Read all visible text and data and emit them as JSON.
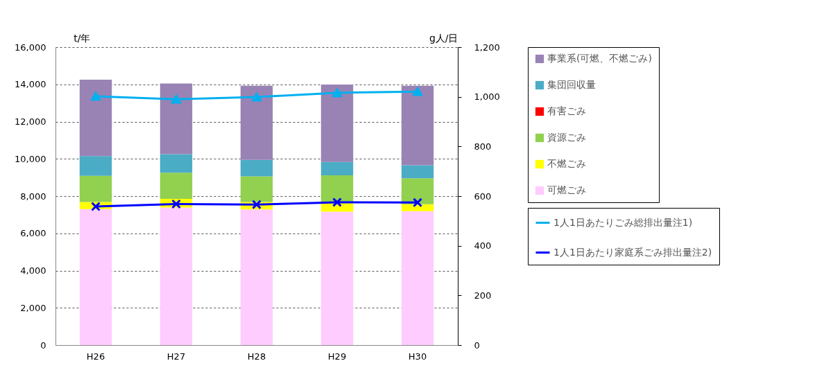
{
  "chart_data": {
    "type": "bar",
    "stacked": true,
    "categories": [
      "H26",
      "H27",
      "H28",
      "H29",
      "H30"
    ],
    "ylabel": "t/年",
    "y2label": "g人/日",
    "ylim": [
      0,
      16000
    ],
    "yticks": [
      {
        "value": 0,
        "label": "0"
      },
      {
        "value": 2000,
        "label": "2,000"
      },
      {
        "value": 4000,
        "label": "4,000"
      },
      {
        "value": 6000,
        "label": "6,000"
      },
      {
        "value": 8000,
        "label": "8,000"
      },
      {
        "value": 10000,
        "label": "10,000"
      },
      {
        "value": 12000,
        "label": "12,000"
      },
      {
        "value": 14000,
        "label": "14,000"
      },
      {
        "value": 16000,
        "label": "16,000"
      }
    ],
    "y2lim": [
      0,
      1200
    ],
    "y2ticks": [
      {
        "value": 0,
        "label": "0"
      },
      {
        "value": 200,
        "label": "200"
      },
      {
        "value": 400,
        "label": "400"
      },
      {
        "value": 600,
        "label": "600"
      },
      {
        "value": 800,
        "label": "800"
      },
      {
        "value": 1000,
        "label": "1,000"
      },
      {
        "value": 1200,
        "label": "1,200"
      }
    ],
    "grid": "y",
    "legend": "right",
    "series": [
      {
        "name": "可燃ごみ",
        "color": "#ffccff",
        "values": [
          7300,
          7390,
          7280,
          7160,
          7190
        ]
      },
      {
        "name": "不燃ごみ",
        "color": "#ffff00",
        "values": [
          380,
          460,
          400,
          520,
          370
        ]
      },
      {
        "name": "資源ごみ",
        "color": "#92d050",
        "values": [
          1410,
          1410,
          1380,
          1440,
          1400
        ]
      },
      {
        "name": "有害ごみ",
        "color": "#ff0000",
        "values": [
          null,
          null,
          null,
          null,
          null
        ]
      },
      {
        "name": "集団回収量",
        "color": "#4bacc6",
        "values": [
          1060,
          990,
          880,
          710,
          700
        ]
      },
      {
        "name": "事業系(可燃、不燃ごみ)",
        "color": "#9983b5",
        "values": [
          4100,
          3800,
          3990,
          4160,
          4270
        ]
      },
      {
        "name": "1人1日あたりごみ総排出量注1)",
        "type": "line",
        "axis": "y2",
        "marker": "triangle",
        "color": "#00b0f0",
        "values": [
          1002,
          990,
          999,
          1016,
          1021
        ]
      },
      {
        "name": "1人1日あたり家庭系ごみ排出量注2)",
        "type": "line",
        "axis": "y2",
        "marker": "cross",
        "color": "#0000ff",
        "values": [
          558,
          568,
          566,
          575,
          574
        ]
      }
    ]
  }
}
